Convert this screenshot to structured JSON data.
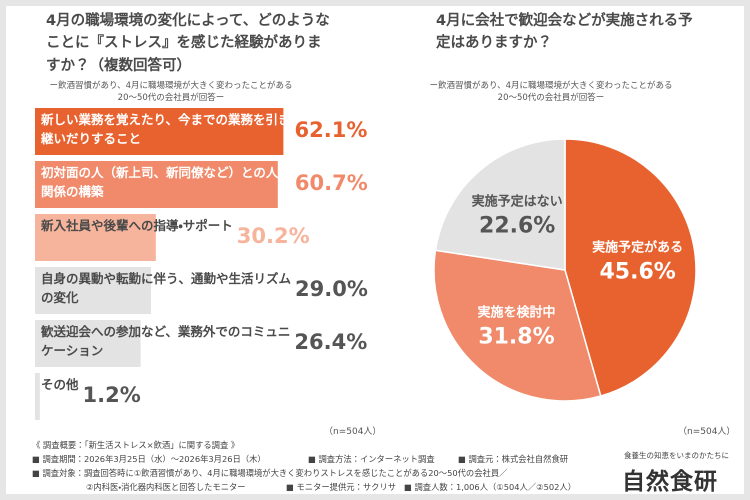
{
  "chart_data": [
    {
      "type": "bar",
      "title": "4月の職場環境の変化によって、どのようなことに『ストレス』を感じた経験がありますか？（複数回答可）",
      "subtitle": "ー飲酒習慣があり、4月に職場環境が大きく変わったことがある20～50代の会社員が回答ー",
      "categories": [
        "新しい業務を覚えたり、今までの業務を引き継いだりすること",
        "初対面の人（新上司、新同僚など）との人間関係の構築",
        "新入社員や後輩への指導・サポート",
        "自身の異動や転勤に伴う、通勤や生活リズムの変化",
        "歓送迎会への参加など、業務外でのコミュニケーション",
        "その他"
      ],
      "values": [
        62.1,
        60.7,
        30.2,
        29.0,
        26.4,
        1.2
      ],
      "value_labels": [
        "62.1%",
        "60.7%",
        "30.2%",
        "29.0%",
        "26.4%",
        "1.2%"
      ],
      "colors": [
        "#e8622f",
        "#f08a6a",
        "#f6b49c",
        "#e3e3e3",
        "#e3e3e3",
        "#e3e3e3"
      ],
      "note": "（n=504人）"
    },
    {
      "type": "pie",
      "title": "4月に会社で歓迎会などが実施される予定はありますか？",
      "subtitle": "ー飲酒習慣があり、4月に職場環境が大きく変わったことがある20～50代の会社員が回答ー",
      "categories": [
        "実施予定がある",
        "実施を検討中",
        "実施予定はない"
      ],
      "values": [
        45.6,
        31.8,
        22.6
      ],
      "value_labels": [
        "45.6%",
        "31.8%",
        "22.6%"
      ],
      "colors": [
        "#e8622f",
        "#f08a6a",
        "#e3e3e3"
      ],
      "note": "（n=504人）"
    }
  ],
  "footer": {
    "heading": "《 調査概要：「新生活ストレス×飲酒」に関する調査 》",
    "period": "■ 調査期間：2026年3月25日（水）～2026年3月26日（木）",
    "method": "■ 調査方法：インターネット調査",
    "source": "■ 調査元：株式会社自然食研",
    "target": "■ 調査対象：調査回答時に①飲酒習慣があり、4月に職場環境が大きく変わりストレスを感じたことがある20～50代の会社員／",
    "target_cont": "②内科医・消化器内科医と回答したモニター",
    "provider": "■ モニター提供元：サクリサ",
    "count": "■ 調査人数：1,006人（①504人／②502人）"
  },
  "logo": {
    "tagline": "食養生の知恵をいまのかたちに",
    "name": "自然食研"
  }
}
